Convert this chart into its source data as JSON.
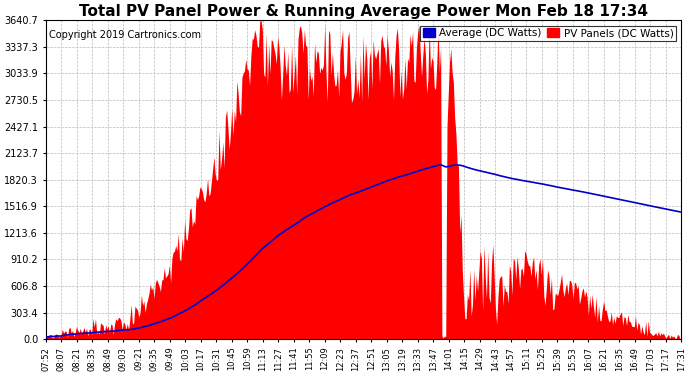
{
  "title": "Total PV Panel Power & Running Average Power Mon Feb 18 17:34",
  "copyright": "Copyright 2019 Cartronics.com",
  "legend_avg": "Average (DC Watts)",
  "legend_pv": "PV Panels (DC Watts)",
  "legend_avg_color": "#0000CC",
  "legend_pv_color": "#FF0000",
  "y_ticks": [
    0.0,
    303.4,
    606.8,
    910.2,
    1213.6,
    1516.9,
    1820.3,
    2123.7,
    2427.1,
    2730.5,
    3033.9,
    3337.3,
    3640.7
  ],
  "pv_color": "#FF0000",
  "avg_color": "#0000CC",
  "bg_color": "#FFFFFF",
  "x_tick_labels": [
    "07:52",
    "08:07",
    "08:21",
    "08:35",
    "08:49",
    "09:03",
    "09:21",
    "09:35",
    "09:49",
    "10:03",
    "10:17",
    "10:31",
    "10:45",
    "10:59",
    "11:13",
    "11:27",
    "11:41",
    "11:55",
    "12:09",
    "12:23",
    "12:37",
    "12:51",
    "13:05",
    "13:19",
    "13:33",
    "13:47",
    "14:01",
    "14:15",
    "14:29",
    "14:43",
    "14:57",
    "15:11",
    "15:25",
    "15:39",
    "15:53",
    "16:07",
    "16:21",
    "16:35",
    "16:49",
    "17:03",
    "17:17",
    "17:31"
  ],
  "title_fontsize": 11,
  "copyright_fontsize": 7,
  "legend_fontsize": 7.5
}
